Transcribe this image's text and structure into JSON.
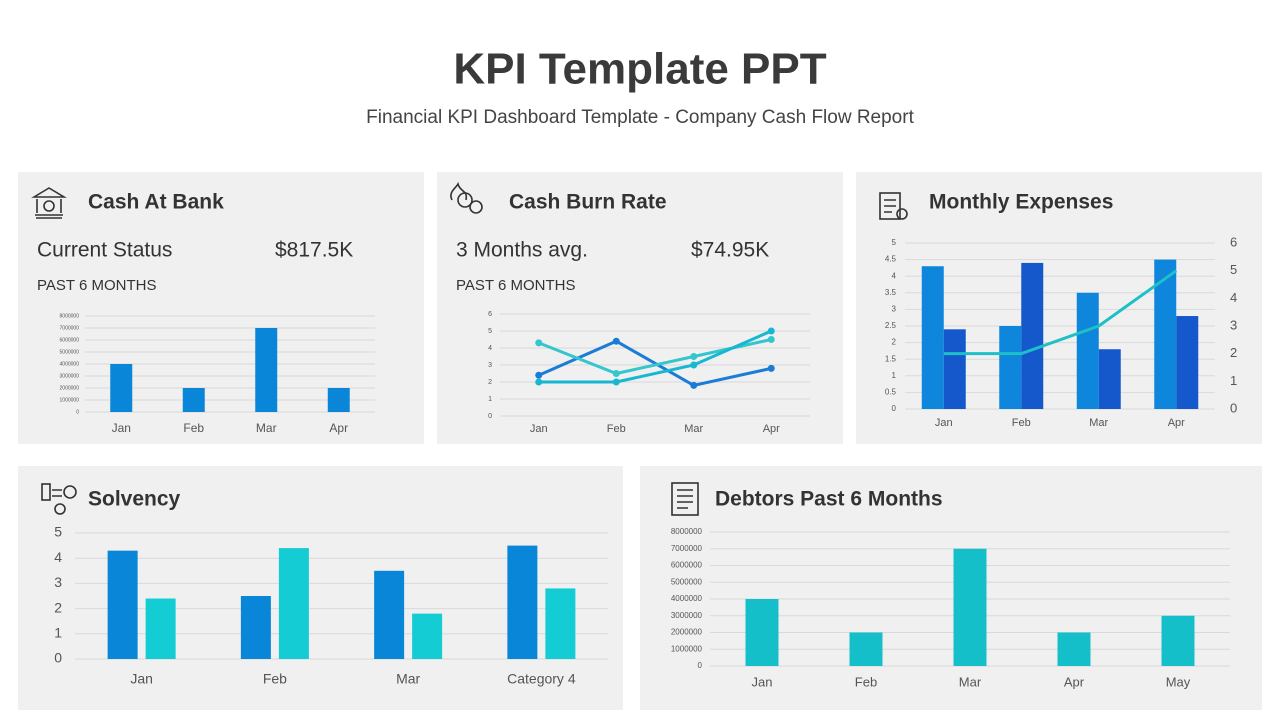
{
  "title": "KPI Template PPT",
  "subtitle": "Financial KPI Dashboard Template - Company Cash Flow Report",
  "chart_data": [
    {
      "type": "bar",
      "title": "Cash At Bank",
      "kpi_label": "Current Status",
      "kpi_value": "$817.5K",
      "period": "PAST 6 MONTHS",
      "categories": [
        "Jan",
        "Feb",
        "Mar",
        "Apr"
      ],
      "values": [
        4000000,
        2000000,
        7000000,
        2000000
      ],
      "color": "#0a86d8",
      "ylim": [
        0,
        8000000
      ],
      "yticks": [
        0,
        1000000,
        2000000,
        3000000,
        4000000,
        5000000,
        6000000,
        7000000,
        8000000
      ],
      "grid": true
    },
    {
      "type": "line",
      "title": "Cash Burn Rate",
      "kpi_label": "3 Months avg.",
      "kpi_value": "$74.95K",
      "period": "PAST 6 MONTHS",
      "categories": [
        "Jan",
        "Feb",
        "Mar",
        "Apr"
      ],
      "series": [
        {
          "color": "#1a7cd6",
          "values": [
            2.4,
            4.4,
            1.8,
            2.8
          ]
        },
        {
          "color": "#33c6cc",
          "values": [
            4.3,
            2.5,
            3.5,
            4.5
          ]
        },
        {
          "color": "#17b6d2",
          "values": [
            2,
            2,
            3,
            5
          ]
        }
      ],
      "ylim": [
        0,
        6
      ],
      "yticks": [
        0,
        1,
        2,
        3,
        4,
        5,
        6
      ],
      "grid": true
    },
    {
      "type": "bar",
      "title": "Monthly Expenses",
      "categories": [
        "Jan",
        "Feb",
        "Mar",
        "Apr"
      ],
      "series": [
        {
          "color": "#0e86dc",
          "values": [
            4.3,
            2.5,
            3.5,
            4.5
          ]
        },
        {
          "color": "#1558cc",
          "values": [
            2.4,
            4.4,
            1.8,
            2.8
          ]
        },
        {
          "type": "line",
          "axis": "y2",
          "color": "#1ec0c8",
          "values": [
            2,
            2,
            3,
            5
          ]
        }
      ],
      "ylim": [
        0,
        5
      ],
      "yticks": [
        0,
        0.5,
        1,
        1.5,
        2,
        2.5,
        3,
        3.5,
        4,
        4.5,
        5
      ],
      "y2lim": [
        0,
        6
      ],
      "y2ticks": [
        0,
        1,
        2,
        3,
        4,
        5,
        6
      ],
      "grid": true
    },
    {
      "type": "bar",
      "title": "Solvency",
      "categories": [
        "Jan",
        "Feb",
        "Mar",
        "Category 4"
      ],
      "series": [
        {
          "color": "#0a86d8",
          "values": [
            4.3,
            2.5,
            3.5,
            4.5
          ]
        },
        {
          "color": "#13ccd4",
          "values": [
            2.4,
            4.4,
            1.8,
            2.8
          ]
        }
      ],
      "ylim": [
        0,
        5
      ],
      "yticks": [
        0,
        1,
        2,
        3,
        4,
        5
      ],
      "grid": true
    },
    {
      "type": "bar",
      "title": "Debtors Past 6 Months",
      "categories": [
        "Jan",
        "Feb",
        "Mar",
        "Apr",
        "May"
      ],
      "values": [
        4000000,
        2000000,
        7000000,
        2000000,
        3000000
      ],
      "color": "#14bfc9",
      "ylim": [
        0,
        8000000
      ],
      "yticks": [
        0,
        1000000,
        2000000,
        3000000,
        4000000,
        5000000,
        6000000,
        7000000,
        8000000
      ],
      "grid": true
    }
  ]
}
